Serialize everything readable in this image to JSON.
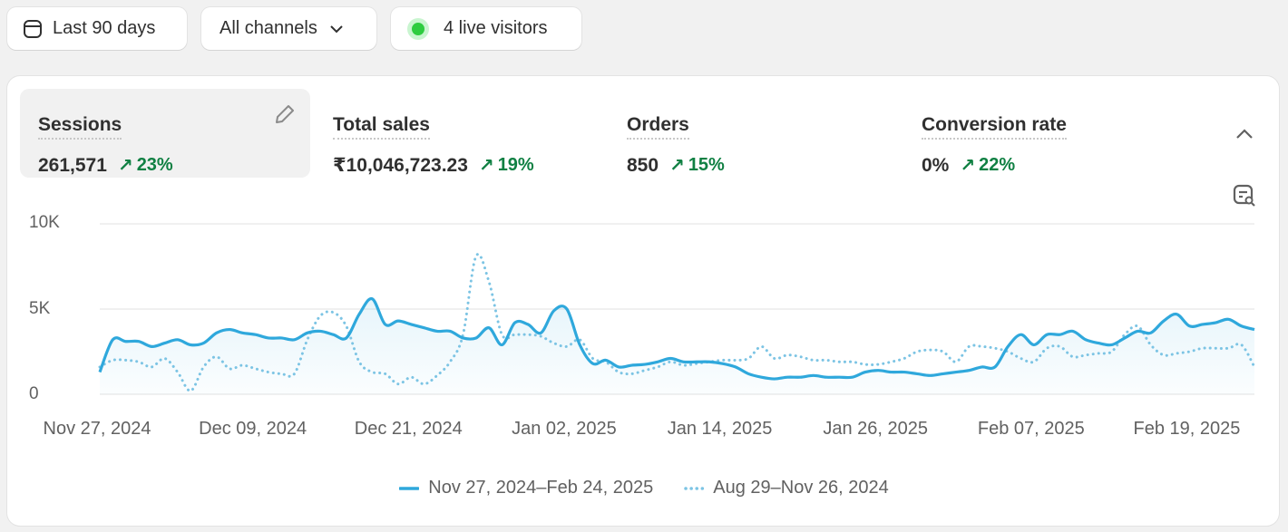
{
  "toolbar": {
    "date_range": "Last 90 days",
    "channels": "All channels",
    "live_visitors": "4 live visitors",
    "live_color": "#2ecc40"
  },
  "metrics": [
    {
      "label": "Sessions",
      "value": "261,571",
      "change": "23%",
      "direction": "up",
      "active": true
    },
    {
      "label": "Total sales",
      "value": "₹10,046,723.23",
      "change": "19%",
      "direction": "up"
    },
    {
      "label": "Orders",
      "value": "850",
      "change": "15%",
      "direction": "up"
    },
    {
      "label": "Conversion rate",
      "value": "0%",
      "change": "22%",
      "direction": "up"
    }
  ],
  "colors": {
    "series": "#2fa8dc",
    "positive": "#108043"
  },
  "chart_data": {
    "type": "line",
    "ylim": [
      0,
      10000
    ],
    "y_ticks": [
      "0",
      "5K",
      "10K"
    ],
    "x_tick_labels": [
      "Nov 27, 2024",
      "Dec 09, 2024",
      "Dec 21, 2024",
      "Jan 02, 2025",
      "Jan 14, 2025",
      "Jan 26, 2025",
      "Feb 07, 2025",
      "Feb 19, 2025"
    ],
    "grid": true,
    "legend_position": "bottom",
    "series": [
      {
        "name": "Nov 27, 2024–Feb 24, 2025",
        "style": "solid",
        "values": [
          1300,
          3200,
          3100,
          3100,
          2800,
          3000,
          3200,
          2900,
          3000,
          3600,
          3800,
          3600,
          3500,
          3300,
          3300,
          3200,
          3600,
          3700,
          3500,
          3300,
          4700,
          5600,
          4100,
          4300,
          4100,
          3900,
          3700,
          3700,
          3300,
          3300,
          3900,
          2900,
          4200,
          4100,
          3600,
          4900,
          5000,
          2900,
          1800,
          2000,
          1600,
          1700,
          1750,
          1900,
          2100,
          1900,
          1900,
          1900,
          1800,
          1600,
          1200,
          1000,
          900,
          1000,
          1000,
          1100,
          1000,
          1000,
          1000,
          1300,
          1400,
          1300,
          1300,
          1200,
          1100,
          1200,
          1300,
          1400,
          1600,
          1600,
          2800,
          3500,
          2900,
          3500,
          3500,
          3700,
          3200,
          3000,
          2900,
          3300,
          3700,
          3600,
          4300,
          4700,
          4000,
          4100,
          4200,
          4400,
          4000,
          3800
        ]
      },
      {
        "name": "Aug 29–Nov 26, 2024",
        "style": "dotted",
        "values": [
          1600,
          2000,
          2000,
          1900,
          1600,
          2100,
          1300,
          200,
          1600,
          2200,
          1500,
          1700,
          1500,
          1300,
          1200,
          1200,
          3200,
          4600,
          4800,
          4000,
          1900,
          1300,
          1200,
          600,
          1000,
          600,
          1100,
          1900,
          3500,
          8100,
          6600,
          3500,
          3500,
          3500,
          3400,
          3000,
          2800,
          3200,
          2100,
          1900,
          1300,
          1200,
          1400,
          1600,
          1900,
          1700,
          1800,
          1900,
          2000,
          2000,
          2100,
          2800,
          2100,
          2300,
          2200,
          2000,
          2000,
          1900,
          1900,
          1750,
          1750,
          1900,
          2100,
          2500,
          2600,
          2500,
          1900,
          2800,
          2800,
          2700,
          2500,
          2100,
          1900,
          2700,
          2800,
          2200,
          2300,
          2400,
          2500,
          3500,
          4000,
          2900,
          2300,
          2400,
          2500,
          2700,
          2700,
          2700,
          2900,
          1600
        ]
      }
    ]
  }
}
